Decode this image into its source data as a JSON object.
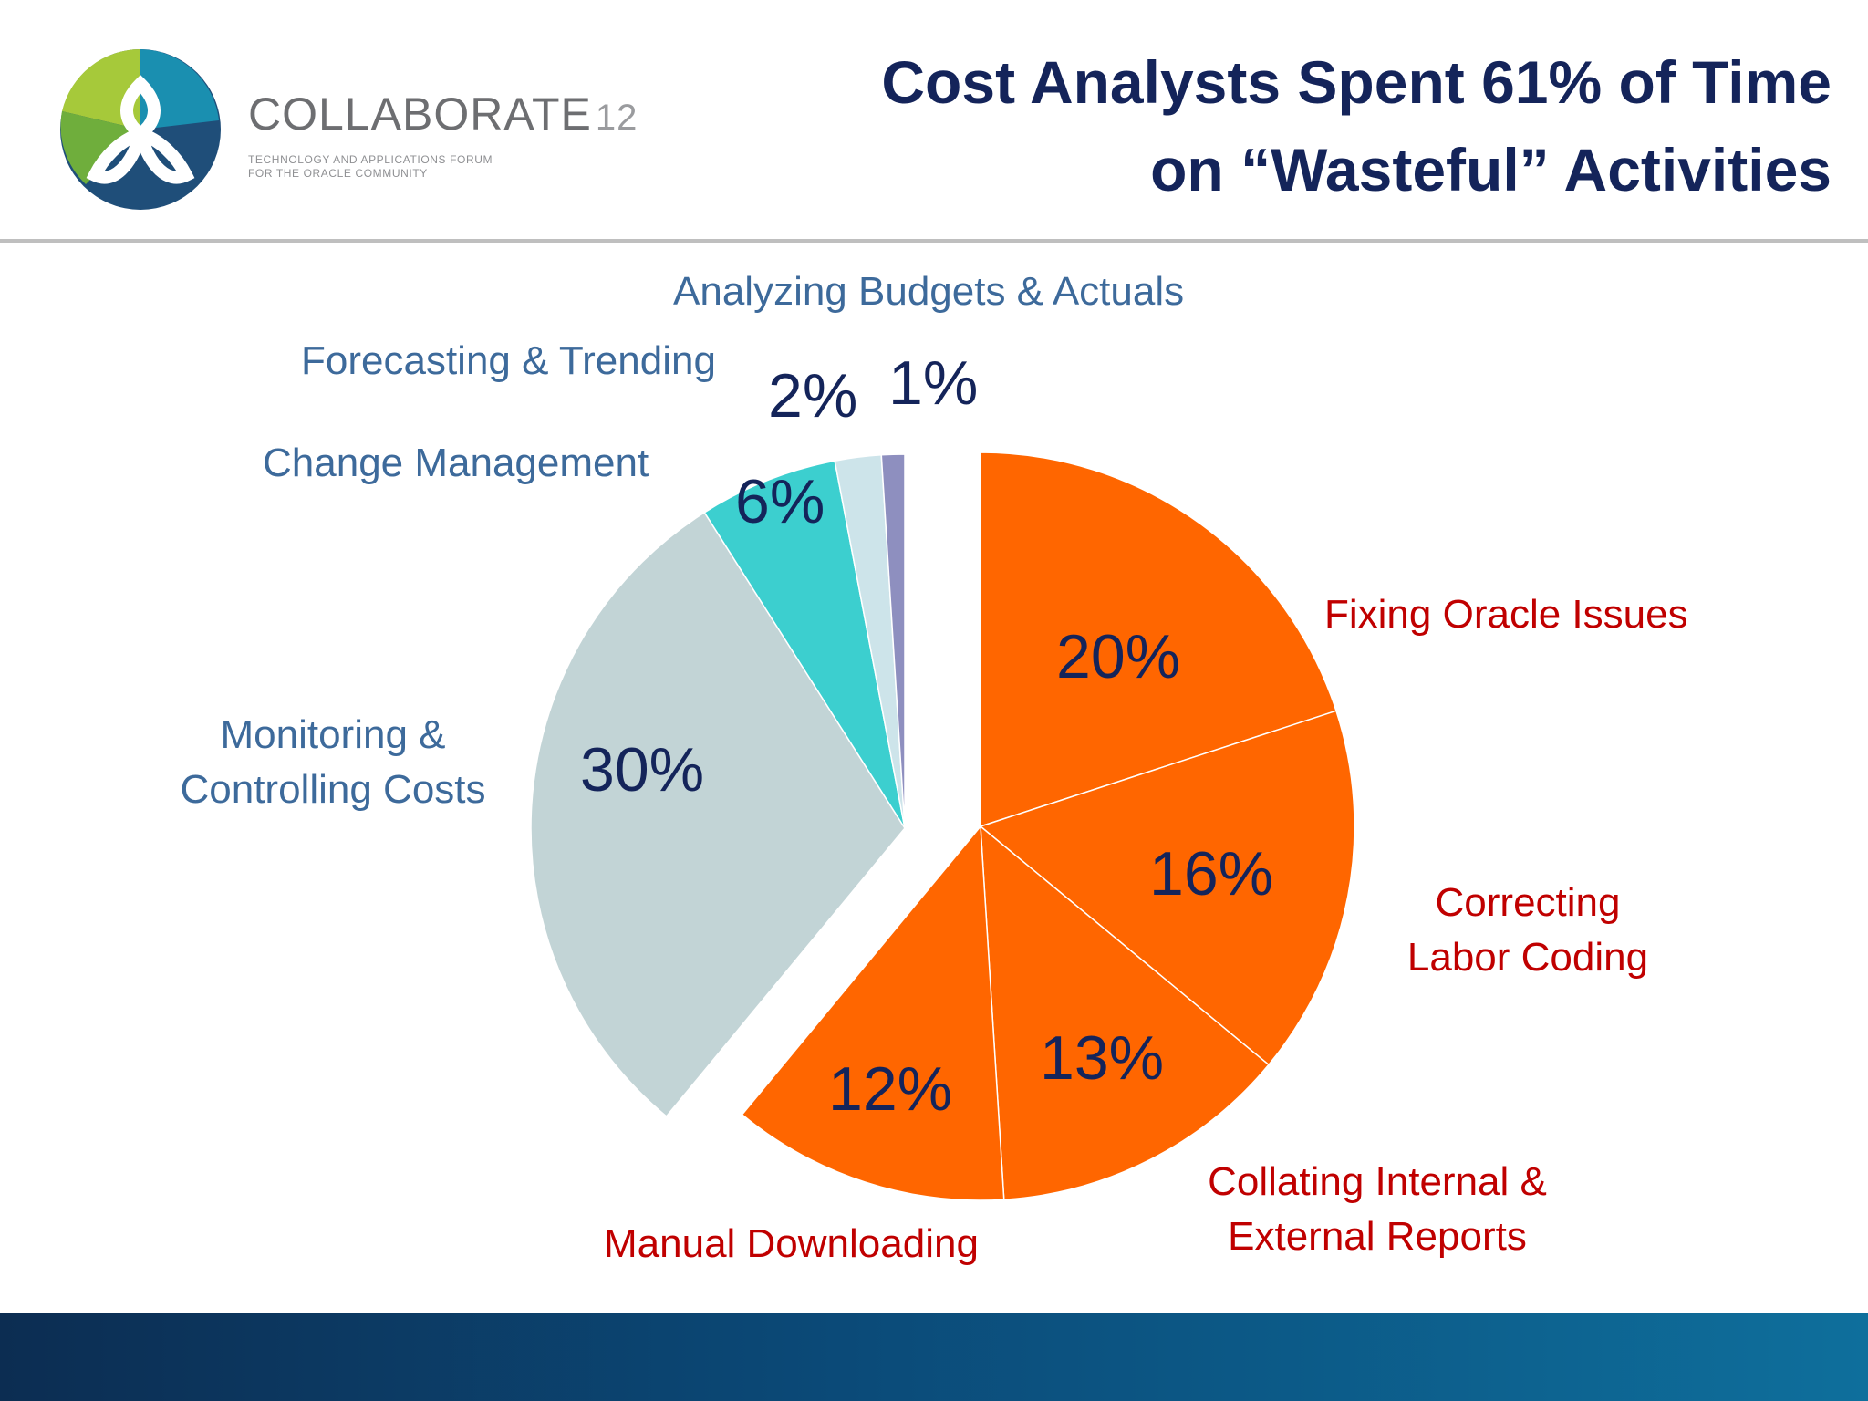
{
  "header": {
    "brand_name": "COLLABORATE",
    "brand_number": "12",
    "brand_tagline_1": "TECHNOLOGY AND APPLICATIONS FORUM",
    "brand_tagline_2": "FOR THE ORACLE COMMUNITY",
    "title_line_1": "Cost Analysts Spent 61% of Time",
    "title_line_2": "on “Wasteful” Activities"
  },
  "colors": {
    "wasteful": "#ff6600",
    "monitoring": "#c2d4d6",
    "change": "#3ccfcf",
    "forecasting": "#cde4ea",
    "budgets": "#8e8fbf",
    "title": "#14245a"
  },
  "chart_data": {
    "type": "pie",
    "title": "",
    "exploded_group": "wasteful",
    "slices": [
      {
        "key": "fixing",
        "label": "Fixing Oracle Issues",
        "value": 20,
        "display": "20%",
        "group": "wasteful"
      },
      {
        "key": "correcting",
        "label_lines": [
          "Correcting",
          "Labor Coding"
        ],
        "value": 16,
        "display": "16%",
        "group": "wasteful"
      },
      {
        "key": "collating",
        "label_lines": [
          "Collating Internal &",
          "External Reports"
        ],
        "value": 13,
        "display": "13%",
        "group": "wasteful"
      },
      {
        "key": "manual",
        "label": "Manual Downloading",
        "value": 12,
        "display": "12%",
        "group": "wasteful"
      },
      {
        "key": "monitoring",
        "label_lines": [
          "Monitoring &",
          "Controlling Costs"
        ],
        "value": 30,
        "display": "30%",
        "group": "other"
      },
      {
        "key": "change",
        "label": "Change Management",
        "value": 6,
        "display": "6%",
        "group": "other"
      },
      {
        "key": "forecasting",
        "label": "Forecasting & Trending",
        "value": 2,
        "display": "2%",
        "group": "other"
      },
      {
        "key": "budgets",
        "label": "Analyzing Budgets & Actuals",
        "value": 1,
        "display": "1%",
        "group": "other"
      }
    ]
  }
}
